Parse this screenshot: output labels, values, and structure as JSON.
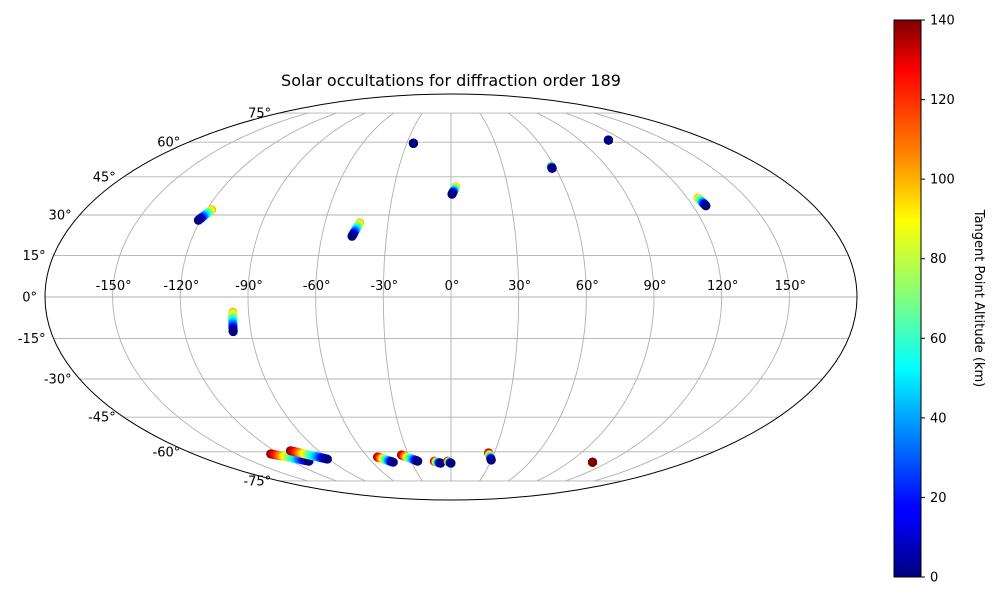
{
  "chart_data": {
    "type": "scatter",
    "projection": "mollweide",
    "title": "Solar occultations for diffraction order 189",
    "grid": true,
    "lon_ticks": [
      -150,
      -120,
      -90,
      -60,
      -30,
      0,
      30,
      60,
      90,
      120,
      150
    ],
    "lat_ticks": [
      -75,
      -60,
      -45,
      -30,
      -15,
      0,
      15,
      30,
      45,
      60,
      75
    ],
    "lon_tick_labels": [
      "-150°",
      "-120°",
      "-90°",
      "-60°",
      "-30°",
      "0°",
      "30°",
      "60°",
      "90°",
      "120°",
      "150°"
    ],
    "lat_tick_labels": [
      "-75°",
      "-60°",
      "-45°",
      "-30°",
      "-15°",
      "0°",
      "15°",
      "30°",
      "45°",
      "60°",
      "75°"
    ],
    "colorbar": {
      "label": "Tangent Point Altitude (km)",
      "colormap": "jet",
      "range": [
        0,
        140
      ],
      "ticks": [
        0,
        20,
        40,
        60,
        80,
        100,
        120,
        140
      ],
      "tick_labels": [
        "0",
        "20",
        "40",
        "60",
        "80",
        "100",
        "120",
        "140"
      ]
    },
    "tracks": [
      {
        "start": [
          -121.0,
          28.0
        ],
        "end": [
          -117.5,
          32.0
        ],
        "alt": [
          0,
          100
        ]
      },
      {
        "start": [
          -46.0,
          22.0
        ],
        "end": [
          -43.5,
          27.0
        ],
        "alt": [
          0,
          100
        ]
      },
      {
        "start": [
          -25.5,
          59.5
        ],
        "end": [
          -25.5,
          59.5
        ],
        "alt": [
          0,
          0
        ]
      },
      {
        "start": [
          0.5,
          38.0
        ],
        "end": [
          2.5,
          41.0
        ],
        "alt": [
          0,
          100
        ]
      },
      {
        "start": [
          58.0,
          48.5
        ],
        "end": [
          58.0,
          49.5
        ],
        "alt": [
          0,
          100
        ]
      },
      {
        "start": [
          110.0,
          61.0
        ],
        "end": [
          110.0,
          61.0
        ],
        "alt": [
          0,
          0
        ]
      },
      {
        "start": [
          126.5,
          33.5
        ],
        "end": [
          125.5,
          36.5
        ],
        "alt": [
          0,
          100
        ]
      },
      {
        "start": [
          -98.0,
          -12.5
        ],
        "end": [
          -97.0,
          -5.5
        ],
        "alt": [
          0,
          100
        ]
      },
      {
        "start": [
          -107.0,
          -64.5
        ],
        "end": [
          -126.0,
          -61.0
        ],
        "alt": [
          0,
          140
        ]
      },
      {
        "start": [
          -91.0,
          -63.5
        ],
        "end": [
          -109.0,
          -59.5
        ],
        "alt": [
          0,
          140
        ]
      },
      {
        "start": [
          -44.0,
          -65.0
        ],
        "end": [
          -53.0,
          -62.5
        ],
        "alt": [
          0,
          140
        ]
      },
      {
        "start": [
          -25.0,
          -64.5
        ],
        "end": [
          -35.0,
          -61.5
        ],
        "alt": [
          0,
          140
        ]
      },
      {
        "start": [
          -8.0,
          -65.5
        ],
        "end": [
          -12.5,
          -64.5
        ],
        "alt": [
          0,
          140
        ]
      },
      {
        "start": [
          0.0,
          -65.5
        ],
        "end": [
          -2.5,
          -64.5
        ],
        "alt": [
          0,
          140
        ]
      },
      {
        "start": [
          30.0,
          -64.0
        ],
        "end": [
          26.0,
          -60.5
        ],
        "alt": [
          0,
          140
        ]
      },
      {
        "start": [
          108.0,
          -65.0
        ],
        "end": [
          108.0,
          -65.0
        ],
        "alt": [
          140,
          140
        ]
      }
    ]
  }
}
